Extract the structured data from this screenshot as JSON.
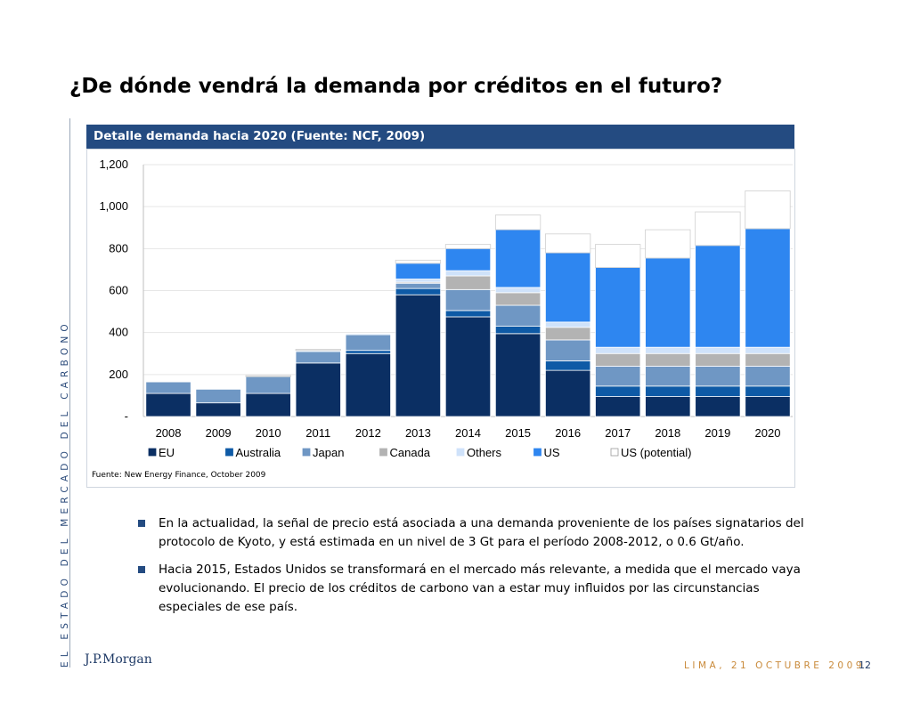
{
  "slide": {
    "title": "¿De dónde vendrá la demanda por créditos en el futuro?",
    "side_text": "EL ESTADO DEL MERCADO DEL CARBONO",
    "chart_header": "Detalle demanda hacia 2020 (Fuente: NCF, 2009)",
    "source": "Fuente: New Energy Finance, October 2009",
    "bullets": [
      "En la actualidad, la señal de precio está asociada a una demanda proveniente de los países signatarios del protocolo de Kyoto, y está estimada en un nivel de 3 Gt para el período 2008-2012, o 0.6 Gt/año.",
      "Hacia 2015, Estados Unidos se transformará en el mercado más relevante, a medida que el mercado vaya evolucionando. El precio de los créditos de carbono van a estar muy influidos por las circunstancias especiales de ese país."
    ],
    "logo": "J.P.Morgan",
    "footer": "LIMA, 21 OCTUBRE 2009",
    "page_number": "12"
  },
  "chart_data": {
    "type": "bar",
    "stacked": true,
    "categories": [
      "2008",
      "2009",
      "2010",
      "2011",
      "2012",
      "2013",
      "2014",
      "2015",
      "2016",
      "2017",
      "2018",
      "2019",
      "2020"
    ],
    "series": [
      {
        "name": "EU",
        "color": "#0b2f63",
        "values": [
          110,
          65,
          110,
          255,
          300,
          580,
          475,
          395,
          220,
          95,
          95,
          95,
          95
        ]
      },
      {
        "name": "Australia",
        "color": "#0e5aa6",
        "values": [
          0,
          0,
          0,
          0,
          15,
          30,
          30,
          35,
          45,
          50,
          50,
          50,
          50
        ]
      },
      {
        "name": "Japan",
        "color": "#6f97c4",
        "values": [
          55,
          65,
          80,
          55,
          75,
          25,
          100,
          100,
          100,
          95,
          95,
          95,
          95
        ]
      },
      {
        "name": "Canada",
        "color": "#b3b3b3",
        "values": [
          0,
          0,
          0,
          0,
          0,
          5,
          65,
          60,
          60,
          60,
          60,
          60,
          60
        ]
      },
      {
        "name": "Others",
        "color": "#cfe2fa",
        "values": [
          0,
          0,
          0,
          5,
          5,
          15,
          25,
          25,
          25,
          30,
          30,
          30,
          30
        ]
      },
      {
        "name": "US",
        "color": "#2e86f0",
        "values": [
          0,
          0,
          0,
          0,
          0,
          75,
          105,
          275,
          330,
          380,
          425,
          485,
          565
        ]
      },
      {
        "name": "US (potential)",
        "color": "#ffffff",
        "values": [
          0,
          0,
          5,
          5,
          0,
          15,
          20,
          70,
          90,
          110,
          135,
          160,
          180
        ]
      }
    ],
    "ylim": [
      0,
      1200
    ],
    "yticks": [
      0,
      200,
      400,
      600,
      800,
      1000,
      1200
    ],
    "ytick_labels": [
      "-",
      "200",
      "400",
      "600",
      "800",
      "1,000",
      "1,200"
    ],
    "grid": true,
    "legend_position": "bottom"
  }
}
